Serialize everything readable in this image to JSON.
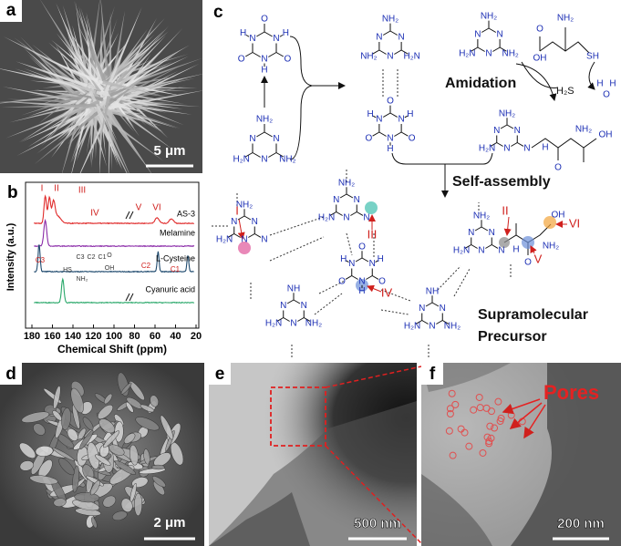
{
  "panels": {
    "a": {
      "label": "a",
      "scale_bar": "5 μm"
    },
    "b": {
      "label": "b",
      "y_axis_label": "Intensity (a.u.)",
      "x_axis_label": "Chemical Shift (ppm)",
      "x_ticks": [
        180,
        160,
        140,
        120,
        100,
        80,
        60,
        40,
        20
      ],
      "traces": [
        {
          "name": "AS-3",
          "peak_labels": [
            "I",
            "II",
            "III",
            "IV",
            "V",
            "VI"
          ]
        },
        {
          "name": "Melamine"
        },
        {
          "name": "L-Cysteine",
          "peak_labels": [
            "C3",
            "C2",
            "C1"
          ],
          "inset_labels": [
            "C3",
            "C2",
            "C1",
            "HS",
            "NH₂",
            "OH",
            "O"
          ]
        },
        {
          "name": "Cyanuric acid"
        }
      ]
    },
    "c": {
      "label": "c",
      "molecules": [
        {
          "ring": [
            "N",
            "N",
            "N"
          ],
          "h": [
            "H",
            "H",
            "H"
          ],
          "subs": [
            "O",
            "O",
            "O"
          ]
        },
        {
          "ring": [
            "N",
            "N",
            "N"
          ],
          "subs": [
            "NH₂",
            "NH₂",
            "H₂N"
          ]
        },
        {
          "ring": [
            "N",
            "N",
            "N"
          ],
          "subs": [
            "NH₂",
            "H₂N",
            "NH₂"
          ]
        },
        {
          "ring": [
            "N",
            "N",
            "N"
          ],
          "h": [
            "H",
            "H",
            "H"
          ],
          "subs": [
            "O",
            "O",
            "O"
          ]
        },
        {
          "ring": [
            "N",
            "N",
            "N"
          ],
          "subs": [
            "NH₂",
            "NH₂",
            "H₂N"
          ]
        },
        {
          "ring": [
            "N",
            "N",
            "N"
          ],
          "subs": [
            "NH₂",
            "N",
            "H₂N"
          ]
        },
        {
          "ring": [
            "N",
            "N",
            "N"
          ],
          "subs": [
            "NH₂",
            "N",
            "H₂N"
          ]
        },
        {
          "ring": [
            "N",
            "N",
            "N"
          ],
          "subs": [
            "NH₂",
            "N",
            "H₂N"
          ]
        },
        {
          "ring": [
            "N",
            "N",
            "N"
          ],
          "h": [
            "H",
            "H",
            "H"
          ],
          "subs": [
            "O",
            "O",
            "O"
          ]
        },
        {
          "ring": [
            "N",
            "N",
            "N"
          ],
          "subs": [
            "NH",
            "NH₂",
            "H₂N"
          ]
        },
        {
          "ring": [
            "N",
            "N",
            "N"
          ],
          "subs": [
            "NH",
            "NH₂",
            "H₂N"
          ]
        },
        {
          "ring": [
            "N",
            "N",
            "N"
          ],
          "subs": [
            "NH₂",
            "N",
            "H₂N"
          ]
        }
      ],
      "cysteine_labels": [
        "NH₂",
        "O",
        "OH",
        "SH"
      ],
      "water_labels": [
        "H",
        "O",
        "H"
      ],
      "product_labels": [
        "H",
        "O",
        "NH₂",
        "OH"
      ],
      "network_labels": [
        "H",
        "O",
        "NH₂",
        "OH"
      ],
      "byproduct": "H₂S",
      "step_1": "Amidation",
      "step_2": "Self-assembly",
      "sites": [
        "I",
        "II",
        "III",
        "IV",
        "V",
        "VI"
      ],
      "product_title": [
        "Supramolecular",
        "Precursor"
      ]
    },
    "d": {
      "label": "d",
      "scale_bar": "2 μm"
    },
    "e": {
      "label": "e",
      "scale_bar": "500 nm"
    },
    "f": {
      "label": "f",
      "scale_bar": "200 nm",
      "annotation": "Pores"
    }
  }
}
